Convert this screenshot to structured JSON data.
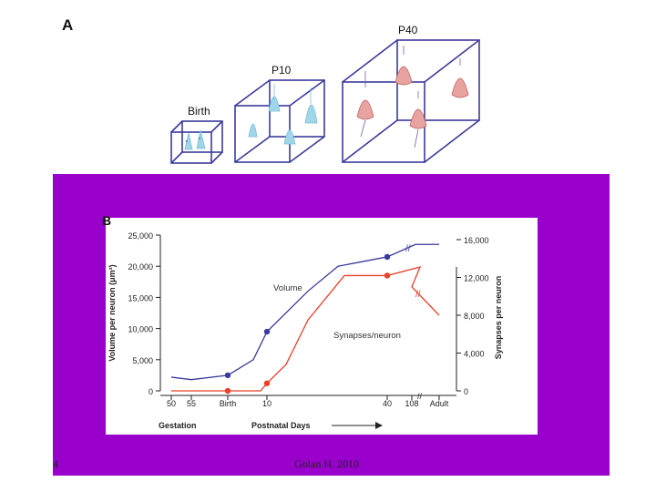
{
  "slide": {
    "panel_a_label": "A",
    "panel_b_label": "B",
    "slide_number": "4",
    "citation": "Golan H. 2010",
    "band_color": "#9900cc"
  },
  "boxes": [
    {
      "label": "Birth",
      "cells": "blue"
    },
    {
      "label": "P10",
      "cells": "blue"
    },
    {
      "label": "P40",
      "cells": "red"
    }
  ],
  "chart_data": {
    "type": "line",
    "ylabel_left": "Volume per neuron (μm³)",
    "ylabel_right": "Synapses per neuron",
    "xlabel": "Postnatal Days",
    "gestation_label": "Gestation",
    "x_ticks": [
      "50",
      "55",
      "Birth",
      "10",
      "40",
      "108",
      "Adult"
    ],
    "y_left_ticks": [
      "25,000",
      "20,000",
      "15,000",
      "10,000",
      "5,000",
      "0"
    ],
    "y_left_lim": [
      0,
      25000
    ],
    "y_right_ticks": [
      "16,000",
      "12,000",
      "8,000",
      "4,000",
      "0"
    ],
    "y_right_lim": [
      0,
      16000
    ],
    "series": [
      {
        "name": "Volume",
        "color": "#3a3a9a",
        "axis": "left",
        "points": [
          [
            "50",
            2200
          ],
          [
            "55",
            1800
          ],
          [
            "Birth",
            2500
          ],
          [
            "P5",
            5000
          ],
          [
            "10",
            9500
          ],
          [
            "P20",
            16000
          ],
          [
            "P25",
            20000
          ],
          [
            "40",
            21500
          ],
          [
            "P60",
            23500
          ],
          [
            "Adult",
            23500
          ]
        ],
        "markers": [
          "Birth",
          "10",
          "40"
        ]
      },
      {
        "name": "Synapses/neuron",
        "color": "#e8402a",
        "axis": "right",
        "points": [
          [
            "50",
            0
          ],
          [
            "Birth",
            0
          ],
          [
            "P8",
            0
          ],
          [
            "10",
            800
          ],
          [
            "P15",
            2800
          ],
          [
            "P20",
            7500
          ],
          [
            "P30",
            12200
          ],
          [
            "40",
            12200
          ],
          [
            "P70",
            13100
          ],
          [
            "108",
            11000
          ],
          [
            "Adult",
            8000
          ]
        ],
        "markers": [
          "Birth",
          "10",
          "40"
        ]
      }
    ],
    "annotations": [
      "Volume",
      "Synapses/neuron"
    ]
  }
}
